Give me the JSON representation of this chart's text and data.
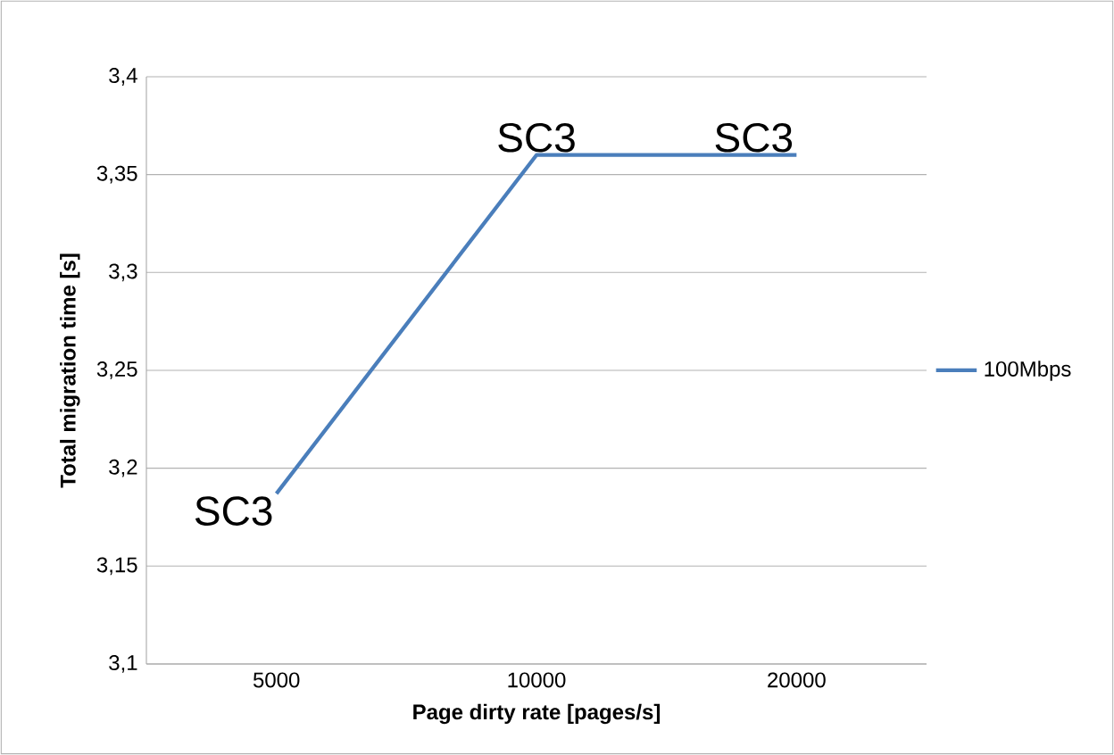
{
  "chart_data": {
    "type": "line",
    "xlabel": "Page dirty rate [pages/s]",
    "ylabel": "Total migration time [s]",
    "categories": [
      "5000",
      "10000",
      "20000"
    ],
    "series": [
      {
        "name": "100Mbps",
        "color": "#4a7ebb",
        "values": [
          3.187,
          3.36,
          3.36
        ]
      }
    ],
    "ylim": [
      3.1,
      3.4
    ],
    "yticks": [
      {
        "value": 3.1,
        "label": "3,1"
      },
      {
        "value": 3.15,
        "label": "3,15"
      },
      {
        "value": 3.2,
        "label": "3,2"
      },
      {
        "value": 3.25,
        "label": "3,25"
      },
      {
        "value": 3.3,
        "label": "3,3"
      },
      {
        "value": 3.35,
        "label": "3,35"
      },
      {
        "value": 3.4,
        "label": "3,4"
      }
    ],
    "grid": "y",
    "legend": "right",
    "marker": "none",
    "line_style": "solid",
    "annotations": [
      {
        "text": "SC3",
        "x": "5000",
        "y": 3.187
      },
      {
        "text": "SC3",
        "x": "10000",
        "y": 3.36
      },
      {
        "text": "SC3",
        "x": "20000",
        "y": 3.36
      }
    ]
  }
}
